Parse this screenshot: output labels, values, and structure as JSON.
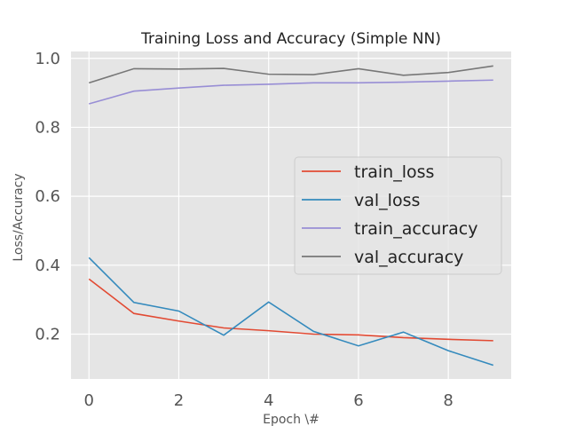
{
  "chart_data": {
    "type": "line",
    "title": "Training Loss and Accuracy (Simple NN)",
    "xlabel": "Epoch \\#",
    "ylabel": "Loss/Accuracy",
    "x": [
      0,
      1,
      2,
      3,
      4,
      5,
      6,
      7,
      8,
      9
    ],
    "xlim": [
      -0.4,
      9.4
    ],
    "ylim": [
      0.07,
      1.02
    ],
    "xticks": [
      0,
      2,
      4,
      6,
      8
    ],
    "yticks": [
      0.2,
      0.4,
      0.6,
      0.8,
      1.0
    ],
    "xtick_labels": [
      "0",
      "2",
      "4",
      "6",
      "8"
    ],
    "ytick_labels": [
      "0.2",
      "0.4",
      "0.6",
      "0.8",
      "1.0"
    ],
    "grid": true,
    "legend_position": "center-right",
    "background": "#e5e5e5",
    "series": [
      {
        "name": "train_loss",
        "color": "#e24a33",
        "values": [
          0.36,
          0.26,
          0.238,
          0.218,
          0.21,
          0.2,
          0.198,
          0.19,
          0.185,
          0.181
        ]
      },
      {
        "name": "val_loss",
        "color": "#348abd",
        "values": [
          0.422,
          0.292,
          0.267,
          0.197,
          0.293,
          0.208,
          0.166,
          0.206,
          0.152,
          0.11
        ]
      },
      {
        "name": "train_accuracy",
        "color": "#988ed5",
        "values": [
          0.868,
          0.905,
          0.914,
          0.922,
          0.925,
          0.929,
          0.929,
          0.931,
          0.934,
          0.937
        ]
      },
      {
        "name": "val_accuracy",
        "color": "#777777",
        "values": [
          0.929,
          0.97,
          0.969,
          0.971,
          0.954,
          0.953,
          0.97,
          0.951,
          0.959,
          0.978
        ]
      }
    ]
  }
}
